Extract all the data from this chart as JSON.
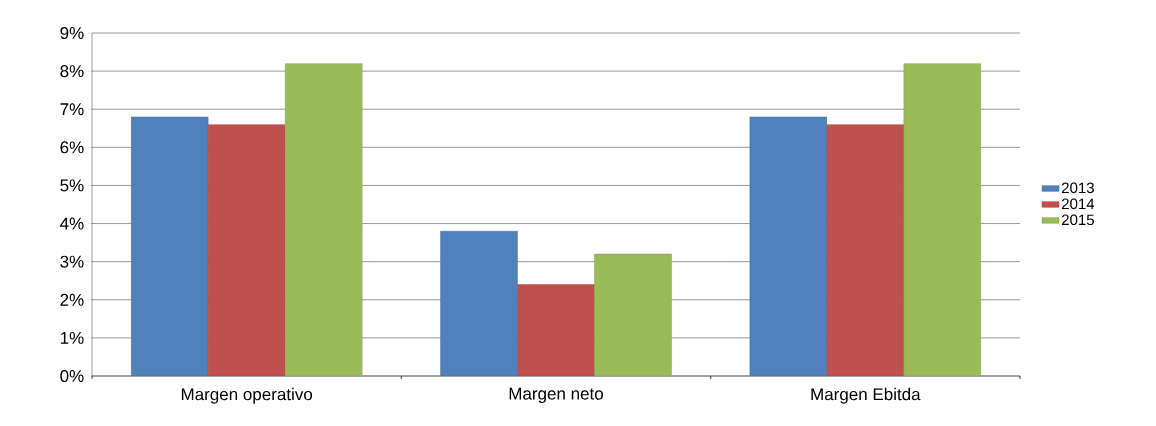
{
  "chart_data": {
    "type": "bar",
    "categories": [
      "Margen operativo",
      "Margen neto",
      "Margen Ebitda"
    ],
    "series": [
      {
        "name": "2013",
        "color": "#4f81bd",
        "values": [
          6.8,
          3.8,
          6.8
        ]
      },
      {
        "name": "2014",
        "color": "#c0504d",
        "values": [
          6.6,
          2.4,
          6.6
        ]
      },
      {
        "name": "2015",
        "color": "#9bbb59",
        "values": [
          8.2,
          3.2,
          8.2
        ]
      }
    ],
    "ylim": [
      0,
      9
    ],
    "yticks": [
      {
        "value": 0,
        "label": "0%"
      },
      {
        "value": 1,
        "label": "1%"
      },
      {
        "value": 2,
        "label": "2%"
      },
      {
        "value": 3,
        "label": "3%"
      },
      {
        "value": 4,
        "label": "4%"
      },
      {
        "value": 5,
        "label": "5%"
      },
      {
        "value": 6,
        "label": "6%"
      },
      {
        "value": 7,
        "label": "7%"
      },
      {
        "value": 8,
        "label": "8%"
      },
      {
        "value": 9,
        "label": "9%"
      }
    ],
    "grid": "y",
    "legend": "right"
  }
}
